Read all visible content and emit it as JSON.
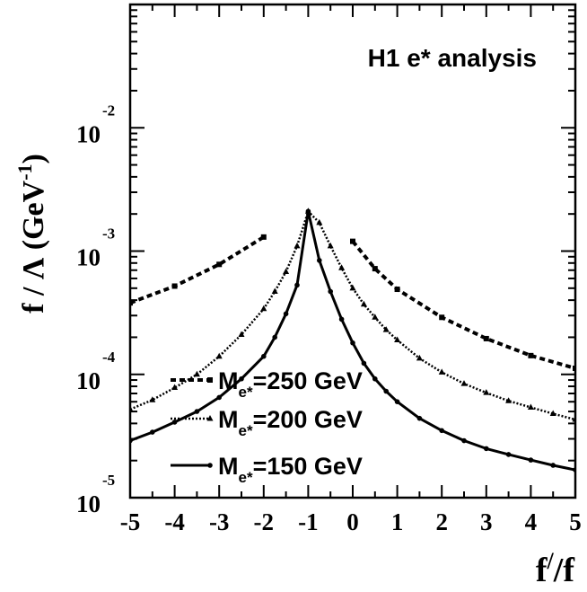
{
  "chart_data": {
    "type": "line",
    "annotation": "H1 e* analysis",
    "xlabel": {
      "main": "f",
      "prime": "/",
      "rest": "/f"
    },
    "ylabel": {
      "main": "f / Λ (GeV",
      "sup": "-1",
      "close": ")"
    },
    "xlim": [
      -5,
      5
    ],
    "ylim": [
      1e-05,
      0.1
    ],
    "yscale": "log",
    "grid": false,
    "legend_position": "bottom-left",
    "x_ticks": [
      {
        "v": -5,
        "label": "-5"
      },
      {
        "v": -4,
        "label": "-4"
      },
      {
        "v": -3,
        "label": "-3"
      },
      {
        "v": -2,
        "label": "-2"
      },
      {
        "v": -1,
        "label": "-1"
      },
      {
        "v": 0,
        "label": "0"
      },
      {
        "v": 1,
        "label": "1"
      },
      {
        "v": 2,
        "label": "2"
      },
      {
        "v": 3,
        "label": "3"
      },
      {
        "v": 4,
        "label": "4"
      },
      {
        "v": 5,
        "label": "5"
      }
    ],
    "y_ticks": [
      {
        "v": 0.01,
        "base": "10",
        "exp": "-2"
      },
      {
        "v": 0.001,
        "base": "10",
        "exp": "-3"
      },
      {
        "v": 0.0001,
        "base": "10",
        "exp": "-4"
      },
      {
        "v": 1e-05,
        "base": "10",
        "exp": "-5"
      }
    ],
    "series": [
      {
        "label_pre": "M",
        "label_sub": "e*",
        "label_post": "=250 GeV",
        "style": "dashed",
        "marker": "square",
        "segments": [
          {
            "x": [
              -5,
              -4,
              -3,
              -2
            ],
            "y": [
              0.00038,
              0.00052,
              0.00078,
              0.0013
            ]
          },
          {
            "x": [
              0,
              0.5,
              1,
              2,
              3,
              4,
              5
            ],
            "y": [
              0.0012,
              0.00072,
              0.00049,
              0.00029,
              0.000195,
              0.000142,
              0.000112
            ]
          }
        ]
      },
      {
        "label_pre": "M",
        "label_sub": "e*",
        "label_post": "=200 GeV",
        "style": "dotted",
        "marker": "triangle",
        "segments": [
          {
            "x": [
              -5,
              -4.5,
              -4,
              -3.5,
              -3,
              -2.5,
              -2,
              -1.75,
              -1.5,
              -1.25,
              -1,
              -0.75,
              -0.5,
              -0.25,
              0,
              0.25,
              0.5,
              0.75,
              1,
              1.5,
              2,
              2.5,
              3,
              3.5,
              4,
              4.5,
              5
            ],
            "y": [
              5.2e-05,
              6.2e-05,
              7.8e-05,
              0.0001,
              0.00014,
              0.00021,
              0.00034,
              0.00047,
              0.00068,
              0.0011,
              0.0021,
              0.0017,
              0.0011,
              0.00073,
              0.0005,
              0.00037,
              0.00029,
              0.00023,
              0.00019,
              0.000135,
              0.000104,
              8.4e-05,
              7.1e-05,
              6.1e-05,
              5.4e-05,
              4.8e-05,
              4.3e-05
            ]
          }
        ]
      },
      {
        "label_pre": "M",
        "label_sub": "e*",
        "label_post": "=150 GeV",
        "style": "solid",
        "marker": "circle",
        "segments": [
          {
            "x": [
              -5,
              -4.5,
              -4,
              -3.5,
              -3,
              -2.5,
              -2,
              -1.75,
              -1.5,
              -1.25,
              -1,
              -0.75,
              -0.5,
              -0.25,
              0,
              0.25,
              0.5,
              0.75,
              1,
              1.5,
              2,
              2.5,
              3,
              3.5,
              4,
              4.5,
              5
            ],
            "y": [
              2.9e-05,
              3.4e-05,
              4.1e-05,
              5e-05,
              6.5e-05,
              9.2e-05,
              0.00014,
              0.0002,
              0.00031,
              0.00053,
              0.0021,
              0.00084,
              0.00047,
              0.00028,
              0.00018,
              0.000123,
              9.2e-05,
              7.3e-05,
              6e-05,
              4.4e-05,
              3.5e-05,
              2.9e-05,
              2.5e-05,
              2.24e-05,
              2.02e-05,
              1.83e-05,
              1.68e-05
            ]
          }
        ]
      }
    ]
  }
}
